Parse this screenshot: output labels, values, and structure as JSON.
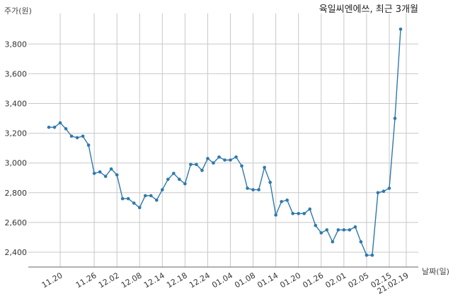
{
  "chart_data": {
    "type": "line",
    "title": "육일씨엔에쓰, 최근 3개월",
    "ylabel": "주가(원)",
    "xlabel": "날짜(일)",
    "ylim": [
      2300,
      4000
    ],
    "yticks": [
      2400,
      2600,
      2800,
      3000,
      3200,
      3400,
      3600,
      3800
    ],
    "ytick_labels": [
      "2,400",
      "2,600",
      "2,800",
      "3,000",
      "3,200",
      "3,400",
      "3,600",
      "3,800"
    ],
    "xticks": [
      {
        "index": 2,
        "label": "11.20"
      },
      {
        "index": 8,
        "label": "11.26"
      },
      {
        "index": 12,
        "label": "12.02"
      },
      {
        "index": 16,
        "label": "12.08"
      },
      {
        "index": 20,
        "label": "12.14"
      },
      {
        "index": 24,
        "label": "12.18"
      },
      {
        "index": 28,
        "label": "12.24"
      },
      {
        "index": 32,
        "label": "01.04"
      },
      {
        "index": 36,
        "label": "01.08"
      },
      {
        "index": 40,
        "label": "01.14"
      },
      {
        "index": 44,
        "label": "01.20"
      },
      {
        "index": 48,
        "label": "01.26"
      },
      {
        "index": 52,
        "label": "02.01"
      },
      {
        "index": 56,
        "label": "02.05"
      },
      {
        "index": 60,
        "label": "02.15"
      },
      {
        "index": 63,
        "label": "21.02.19"
      }
    ],
    "grid": true,
    "series": [
      {
        "values": [
          3240,
          3240,
          3270,
          3230,
          3180,
          3170,
          3180,
          3120,
          2930,
          2940,
          2910,
          2960,
          2920,
          2760,
          2760,
          2730,
          2700,
          2780,
          2780,
          2750,
          2820,
          2890,
          2930,
          2890,
          2860,
          2990,
          2990,
          2950,
          3030,
          3000,
          3040,
          3020,
          3020,
          3040,
          2980,
          2830,
          2820,
          2820,
          2970,
          2870,
          2650,
          2740,
          2750,
          2660,
          2660,
          2660,
          2690,
          2580,
          2530,
          2550,
          2470,
          2550,
          2550,
          2550,
          2570,
          2470,
          2380,
          2380,
          2800,
          2810,
          2830,
          3300,
          3900
        ],
        "color": "#2e79ad"
      }
    ]
  }
}
